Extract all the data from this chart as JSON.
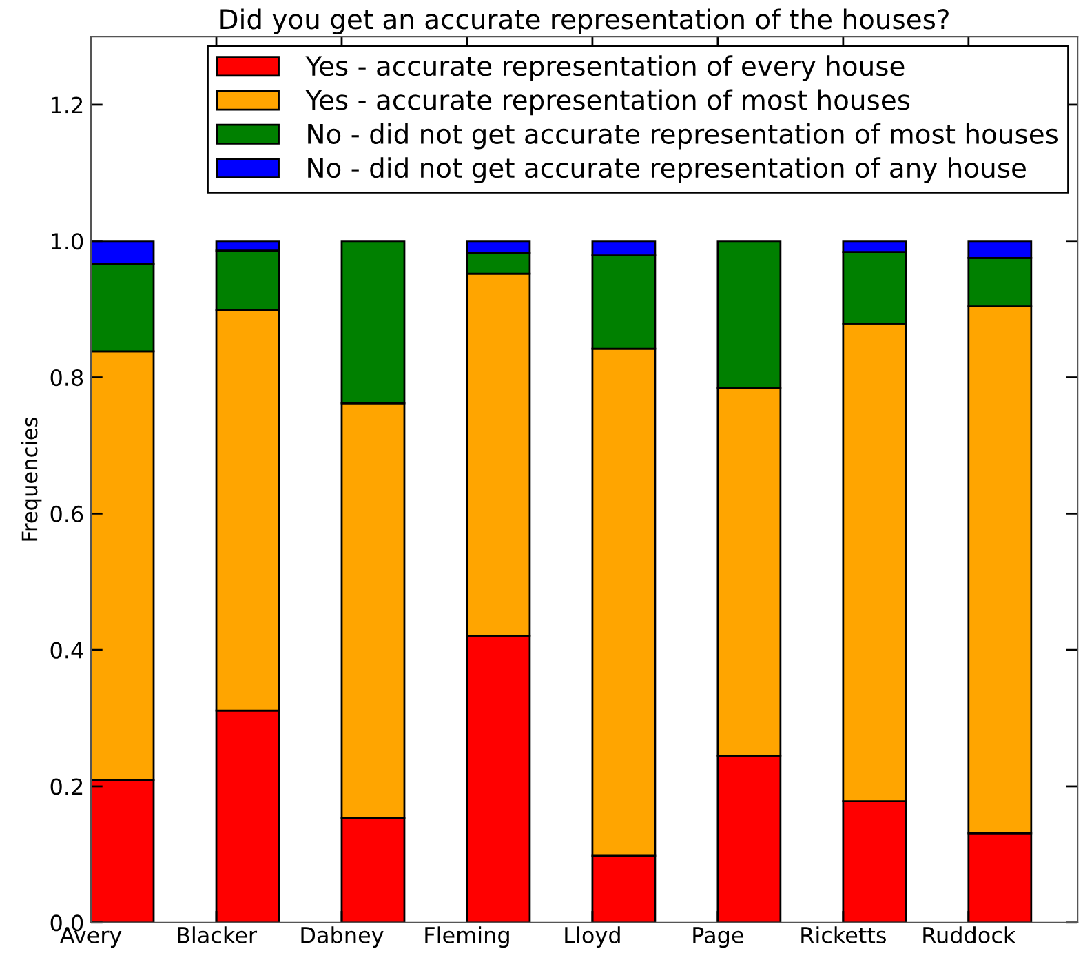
{
  "chart_data": {
    "type": "bar",
    "title": "Did you get an accurate representation of the houses?",
    "ylabel": "Frequencies",
    "categories": [
      "Avery",
      "Blacker",
      "Dabney",
      "Fleming",
      "Lloyd",
      "Page",
      "Ricketts",
      "Ruddock"
    ],
    "stacked": true,
    "series": [
      {
        "name": "Yes - accurate representation of every house",
        "color": "#ff0000",
        "values": [
          0.209,
          0.311,
          0.153,
          0.421,
          0.098,
          0.245,
          0.178,
          0.131
        ]
      },
      {
        "name": "Yes - accurate representation of most houses",
        "color": "#ffa500",
        "values": [
          0.629,
          0.588,
          0.609,
          0.531,
          0.744,
          0.539,
          0.701,
          0.773
        ]
      },
      {
        "name": "No - did not get accurate representation of most houses",
        "color": "#008000",
        "values": [
          0.128,
          0.087,
          0.238,
          0.031,
          0.137,
          0.216,
          0.105,
          0.071
        ]
      },
      {
        "name": "No - did not get accurate representation of any house",
        "color": "#0000ff",
        "values": [
          0.034,
          0.014,
          0,
          0.017,
          0.021,
          0,
          0.016,
          0.025
        ]
      }
    ],
    "ylim": [
      0,
      1.3
    ],
    "yticks": [
      {
        "value": 0,
        "label": "0.0"
      },
      0.2,
      0.4,
      0.6,
      0.8,
      {
        "value": 1,
        "label": "1.0"
      },
      1.2
    ],
    "grid": false,
    "legend": "top right"
  }
}
